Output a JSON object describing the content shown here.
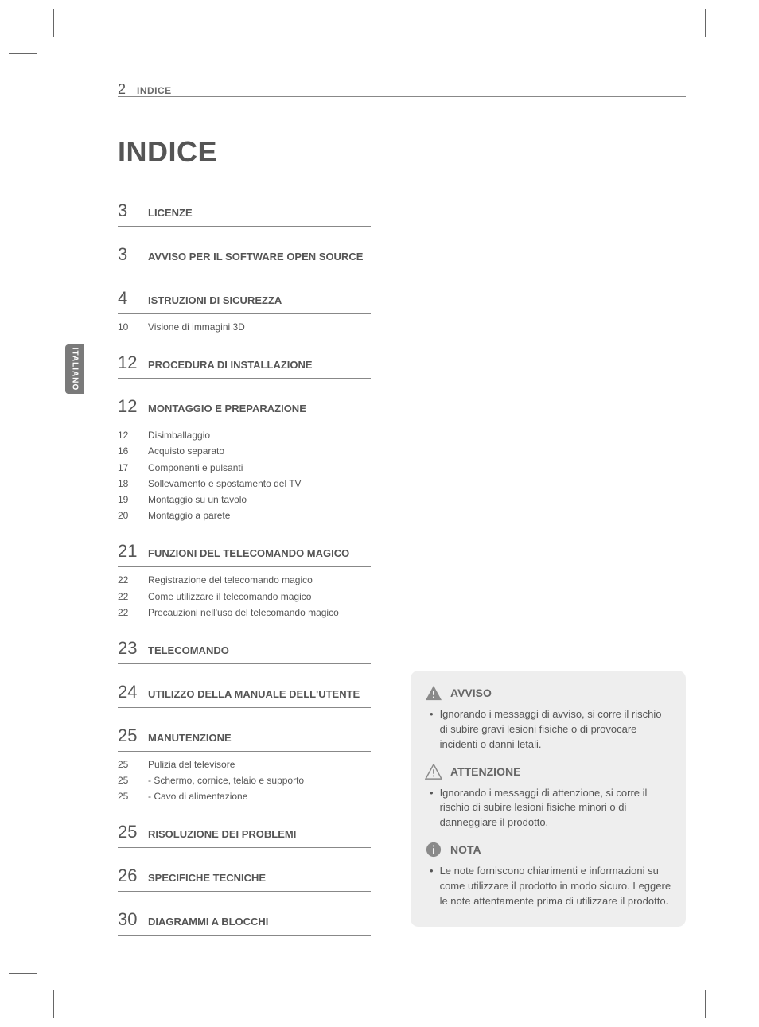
{
  "header": {
    "page": "2",
    "label": "INDICE"
  },
  "title": "INDICE",
  "sideTab": "ITALIANO",
  "toc": [
    {
      "page": "3",
      "title": "LICENZE",
      "subs": []
    },
    {
      "page": "3",
      "title": "AVVISO PER IL SOFTWARE OPEN SOURCE",
      "subs": []
    },
    {
      "page": "4",
      "title": "ISTRUZIONI DI SICUREZZA",
      "subs": [
        {
          "page": "10",
          "title": "Visione di immagini 3D"
        }
      ]
    },
    {
      "page": "12",
      "title": "PROCEDURA DI INSTALLAZIONE",
      "subs": []
    },
    {
      "page": "12",
      "title": "MONTAGGIO E PREPARAZIONE",
      "subs": [
        {
          "page": "12",
          "title": "Disimballaggio"
        },
        {
          "page": "16",
          "title": "Acquisto separato"
        },
        {
          "page": "17",
          "title": "Componenti e pulsanti"
        },
        {
          "page": "18",
          "title": "Sollevamento e spostamento del TV"
        },
        {
          "page": "19",
          "title": "Montaggio su un tavolo"
        },
        {
          "page": "20",
          "title": "Montaggio a parete"
        }
      ]
    },
    {
      "page": "21",
      "title": "FUNZIONI DEL TELECOMANDO MAGICO",
      "subs": [
        {
          "page": "22",
          "title": "Registrazione del telecomando magico"
        },
        {
          "page": "22",
          "title": "Come utilizzare il telecomando magico"
        },
        {
          "page": "22",
          "title": "Precauzioni nell'uso del telecomando magico"
        }
      ]
    },
    {
      "page": "23",
      "title": "TELECOMANDO",
      "subs": []
    },
    {
      "page": "24",
      "title": "UTILIZZO DELLA MANUALE DELL'UTENTE",
      "subs": []
    },
    {
      "page": "25",
      "title": "MANUTENZIONE",
      "subs": [
        {
          "page": "25",
          "title": "Pulizia del televisore"
        },
        {
          "page": "25",
          "title": "-  Schermo, cornice, telaio e supporto"
        },
        {
          "page": "25",
          "title": "-  Cavo di alimentazione"
        }
      ]
    },
    {
      "page": "25",
      "title": "RISOLUZIONE DEI PROBLEMI",
      "subs": []
    },
    {
      "page": "26",
      "title": "SPECIFICHE TECNICHE",
      "subs": []
    },
    {
      "page": "30",
      "title": "DIAGRAMMI A BLOCCHI",
      "subs": []
    }
  ],
  "info": {
    "warning": {
      "head": "AVVISO",
      "body": "Ignorando i messaggi di avviso, si corre il rischio di subire gravi lesioni fisiche o di provocare incidenti o danni letali."
    },
    "caution": {
      "head": "ATTENZIONE",
      "body": "Ignorando i messaggi di attenzione, si corre il rischio di subire lesioni fisiche minori o di danneggiare il prodotto."
    },
    "note": {
      "head": "NOTA",
      "body": "Le note forniscono chiarimenti e informazioni su come utilizzare il prodotto in modo sicuro. Leggere le note attentamente prima di utilizzare il prodotto."
    }
  },
  "colors": {
    "iconFill": "#8a8a8a",
    "iconStroke": "#8a8a8a",
    "boxBg": "#eeeeee",
    "text": "#555555"
  }
}
